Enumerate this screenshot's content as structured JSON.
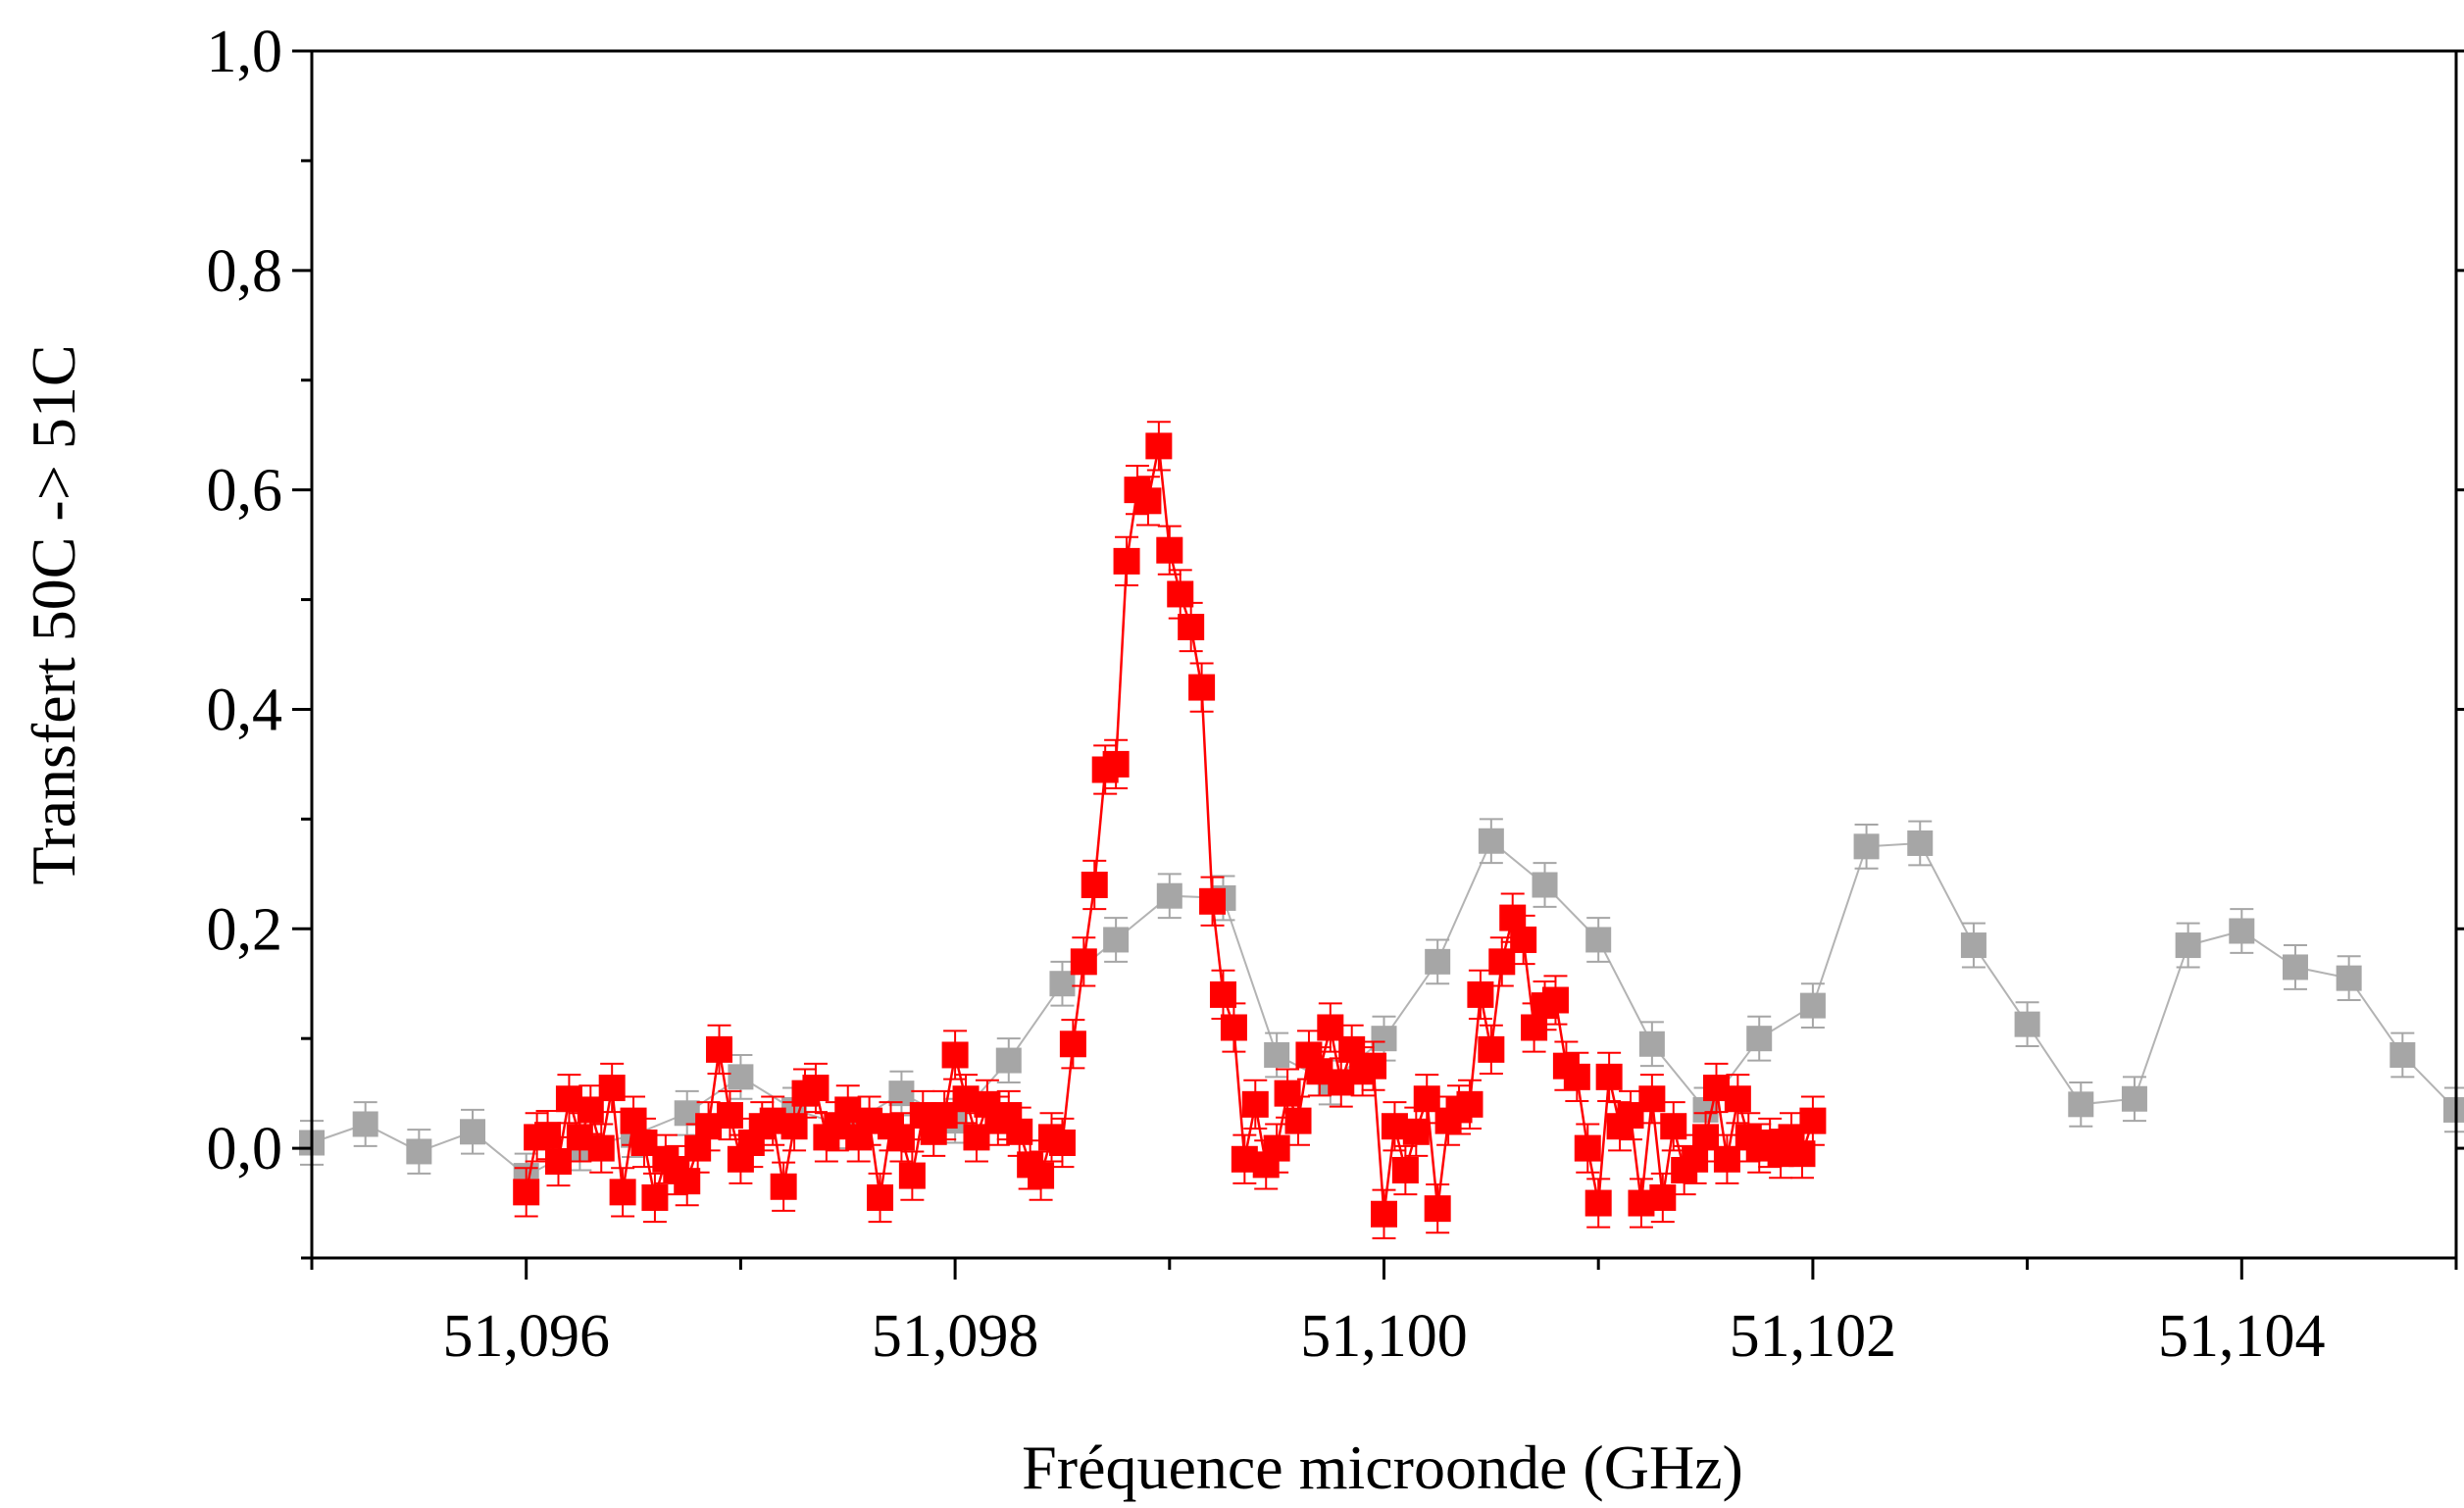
{
  "chart_data": {
    "type": "scatter",
    "title": "",
    "xlabel": "Fréquence microonde (GHz)",
    "ylabel": "Transfert 50C -> 51C",
    "xlim": [
      51.095,
      51.105
    ],
    "ylim": [
      -0.1,
      1.0
    ],
    "x_ticks": [
      51.096,
      51.098,
      51.1,
      51.102,
      51.104
    ],
    "x_tick_labels": [
      "51,096",
      "51,098",
      "51,100",
      "51,102",
      "51,104"
    ],
    "y_ticks": [
      0.0,
      0.2,
      0.4,
      0.6,
      0.8,
      1.0
    ],
    "y_tick_labels": [
      "0,0",
      "0,2",
      "0,4",
      "0,6",
      "0,8",
      "1,0"
    ],
    "grid": false,
    "legend": "none",
    "series": [
      {
        "color": "#a6a6a6",
        "marker": "square",
        "line": true,
        "error": 0.02,
        "x": [
          51.095,
          51.09525,
          51.0955,
          51.09575,
          51.096,
          51.09625,
          51.0965,
          51.09675,
          51.097,
          51.09725,
          51.0975,
          51.09775,
          51.098,
          51.09825,
          51.0985,
          51.09875,
          51.099,
          51.09925,
          51.0995,
          51.09975,
          51.1,
          51.10025,
          51.1005,
          51.10075,
          51.101,
          51.10125,
          51.1015,
          51.10175,
          51.102,
          51.10225,
          51.1025,
          51.10275,
          51.103,
          51.10325,
          51.1035,
          51.10375,
          51.104,
          51.10425,
          51.1045,
          51.10475,
          51.105
        ],
        "y": [
          0.005,
          0.022,
          -0.003,
          0.015,
          -0.025,
          0.0,
          0.012,
          0.032,
          0.065,
          0.035,
          0.02,
          0.05,
          0.025,
          0.08,
          0.15,
          0.19,
          0.23,
          0.228,
          0.085,
          0.06,
          0.1,
          0.17,
          0.28,
          0.24,
          0.19,
          0.095,
          0.035,
          0.1,
          0.13,
          0.275,
          0.278,
          0.185,
          0.113,
          0.04,
          0.045,
          0.185,
          0.198,
          0.165,
          0.155,
          0.085,
          0.035
        ]
      },
      {
        "color": "#ff0000",
        "marker": "square",
        "line": true,
        "error": 0.022,
        "x": [
          51.096,
          51.09605,
          51.0961,
          51.09615,
          51.0962,
          51.09625,
          51.0963,
          51.09635,
          51.0964,
          51.09645,
          51.0965,
          51.09655,
          51.0966,
          51.09665,
          51.0967,
          51.09675,
          51.0968,
          51.09685,
          51.0969,
          51.09695,
          51.097,
          51.09705,
          51.0971,
          51.09715,
          51.0972,
          51.09725,
          51.0973,
          51.09735,
          51.0974,
          51.09745,
          51.0975,
          51.09755,
          51.0976,
          51.09765,
          51.0977,
          51.09775,
          51.0978,
          51.09785,
          51.0979,
          51.09795,
          51.098,
          51.09805,
          51.0981,
          51.09815,
          51.0982,
          51.09825,
          51.0983,
          51.09835,
          51.0984,
          51.09845,
          51.0985,
          51.09855,
          51.0986,
          51.09865,
          51.0987,
          51.09875,
          51.0988,
          51.09885,
          51.0989,
          51.09895,
          51.099,
          51.09905,
          51.0991,
          51.09915,
          51.0992,
          51.09925,
          51.0993,
          51.09935,
          51.0994,
          51.09945,
          51.0995,
          51.09955,
          51.0996,
          51.09965,
          51.0997,
          51.09975,
          51.0998,
          51.09985,
          51.0999,
          51.09995,
          51.1,
          51.10005,
          51.1001,
          51.10015,
          51.1002,
          51.10025,
          51.1003,
          51.10035,
          51.1004,
          51.10045,
          51.1005,
          51.10055,
          51.1006,
          51.10065,
          51.1007,
          51.10075,
          51.1008,
          51.10085,
          51.1009,
          51.10095,
          51.101,
          51.10105,
          51.1011,
          51.10115,
          51.1012,
          51.10125,
          51.1013,
          51.10135,
          51.1014,
          51.10145,
          51.1015,
          51.10155,
          51.1016,
          51.10165,
          51.1017,
          51.10175,
          51.1018,
          51.10185,
          51.1019,
          51.10195,
          51.102
        ],
        "y": [
          -0.04,
          0.01,
          0.012,
          -0.012,
          0.045,
          0.01,
          0.035,
          0.0,
          0.055,
          -0.04,
          0.025,
          0.005,
          -0.045,
          -0.01,
          -0.02,
          -0.03,
          0.0,
          0.02,
          0.09,
          0.03,
          -0.01,
          0.005,
          0.02,
          0.025,
          -0.035,
          0.02,
          0.05,
          0.055,
          0.01,
          0.02,
          0.035,
          0.01,
          0.025,
          -0.045,
          0.02,
          0.01,
          -0.025,
          0.03,
          0.015,
          0.03,
          0.085,
          0.045,
          0.01,
          0.04,
          0.025,
          0.03,
          0.015,
          -0.015,
          -0.025,
          0.01,
          0.005,
          0.095,
          0.17,
          0.24,
          0.345,
          0.35,
          0.535,
          0.6,
          0.59,
          0.64,
          0.545,
          0.505,
          0.475,
          0.42,
          0.225,
          0.14,
          0.11,
          -0.01,
          0.04,
          -0.015,
          0.0,
          0.05,
          0.025,
          0.085,
          0.07,
          0.11,
          0.06,
          0.09,
          0.07,
          0.075,
          -0.06,
          0.02,
          -0.02,
          0.015,
          0.045,
          -0.055,
          0.025,
          0.035,
          0.04,
          0.14,
          0.09,
          0.17,
          0.21,
          0.19,
          0.11,
          0.13,
          0.135,
          0.075,
          0.065,
          0.0,
          -0.05,
          0.065,
          0.02,
          0.03,
          -0.05,
          0.045,
          -0.045,
          0.02,
          -0.02,
          -0.01,
          0.01,
          0.055,
          -0.01,
          0.045,
          0.01,
          0.0,
          0.005,
          -0.005,
          0.01,
          -0.005,
          0.025
        ]
      }
    ]
  }
}
